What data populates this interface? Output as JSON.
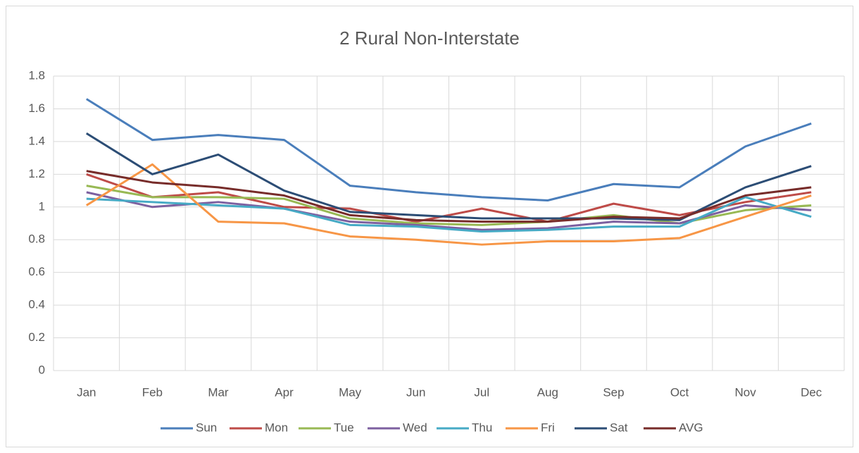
{
  "chart_data": {
    "type": "line",
    "title": "2 Rural Non-Interstate",
    "categories": [
      "Jan",
      "Feb",
      "Mar",
      "Apr",
      "May",
      "Jun",
      "Jul",
      "Aug",
      "Sep",
      "Oct",
      "Nov",
      "Dec"
    ],
    "ylim": [
      0,
      1.8
    ],
    "yticks": [
      0,
      0.2,
      0.4,
      0.6,
      0.8,
      1,
      1.2,
      1.4,
      1.6,
      1.8
    ],
    "grid": true,
    "legend": "bottom",
    "series": [
      {
        "name": "Sun",
        "color": "#4a7ebb",
        "values": [
          1.66,
          1.41,
          1.44,
          1.41,
          1.13,
          1.09,
          1.06,
          1.04,
          1.14,
          1.12,
          1.37,
          1.51
        ]
      },
      {
        "name": "Mon",
        "color": "#be4b48",
        "values": [
          1.2,
          1.06,
          1.09,
          1.0,
          0.99,
          0.91,
          0.99,
          0.91,
          1.02,
          0.95,
          1.03,
          1.09
        ]
      },
      {
        "name": "Tue",
        "color": "#98b954",
        "values": [
          1.13,
          1.06,
          1.06,
          1.05,
          0.93,
          0.9,
          0.89,
          0.91,
          0.95,
          0.9,
          0.98,
          1.01
        ]
      },
      {
        "name": "Wed",
        "color": "#7d60a0",
        "values": [
          1.09,
          1.0,
          1.03,
          0.99,
          0.91,
          0.89,
          0.86,
          0.87,
          0.91,
          0.9,
          1.01,
          0.98
        ]
      },
      {
        "name": "Thu",
        "color": "#46aac5",
        "values": [
          1.05,
          1.03,
          1.01,
          0.99,
          0.89,
          0.88,
          0.85,
          0.86,
          0.88,
          0.88,
          1.06,
          0.94
        ]
      },
      {
        "name": "Fri",
        "color": "#f79646",
        "values": [
          1.01,
          1.26,
          0.91,
          0.9,
          0.82,
          0.8,
          0.77,
          0.79,
          0.79,
          0.81,
          0.94,
          1.07
        ]
      },
      {
        "name": "Sat",
        "color": "#2c4d75",
        "values": [
          1.45,
          1.2,
          1.32,
          1.1,
          0.97,
          0.95,
          0.93,
          0.93,
          0.93,
          0.92,
          1.12,
          1.25
        ]
      },
      {
        "name": "AVG",
        "color": "#772c2a",
        "values": [
          1.22,
          1.15,
          1.12,
          1.07,
          0.95,
          0.92,
          0.91,
          0.91,
          0.94,
          0.93,
          1.07,
          1.12
        ]
      }
    ]
  }
}
